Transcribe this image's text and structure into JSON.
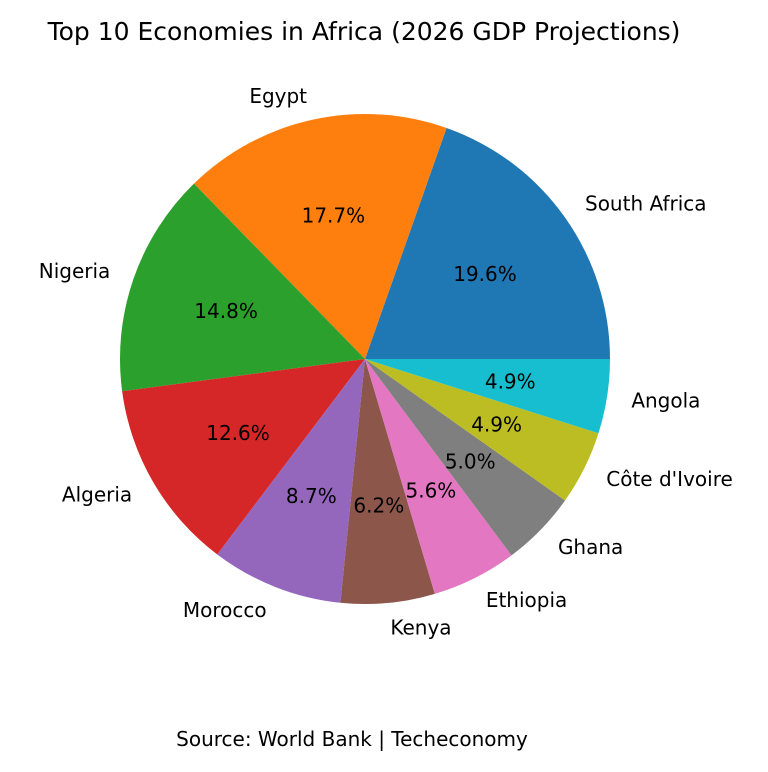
{
  "chart_data": {
    "type": "pie",
    "title": "Top 10 Economies in Africa (2026 GDP Projections)",
    "caption": "Source: World Bank | Techeconomy",
    "start_angle_deg": 0,
    "direction": "counterclockwise",
    "slices": [
      {
        "label": "South Africa",
        "pct": 19.6,
        "pct_label": "19.6%",
        "color": "#1f77b4"
      },
      {
        "label": "Egypt",
        "pct": 17.7,
        "pct_label": "17.7%",
        "color": "#ff7f0e"
      },
      {
        "label": "Nigeria",
        "pct": 14.8,
        "pct_label": "14.8%",
        "color": "#2ca02c"
      },
      {
        "label": "Algeria",
        "pct": 12.6,
        "pct_label": "12.6%",
        "color": "#d62728"
      },
      {
        "label": "Morocco",
        "pct": 8.7,
        "pct_label": "8.7%",
        "color": "#9467bd"
      },
      {
        "label": "Kenya",
        "pct": 6.2,
        "pct_label": "6.2%",
        "color": "#8c564b"
      },
      {
        "label": "Ethiopia",
        "pct": 5.6,
        "pct_label": "5.6%",
        "color": "#e377c2"
      },
      {
        "label": "Ghana",
        "pct": 5.0,
        "pct_label": "5.0%",
        "color": "#7f7f7f"
      },
      {
        "label": "Côte d'Ivoire",
        "pct": 4.9,
        "pct_label": "4.9%",
        "color": "#bcbd22"
      },
      {
        "label": "Angola",
        "pct": 4.9,
        "pct_label": "4.9%",
        "color": "#17becf"
      }
    ]
  }
}
